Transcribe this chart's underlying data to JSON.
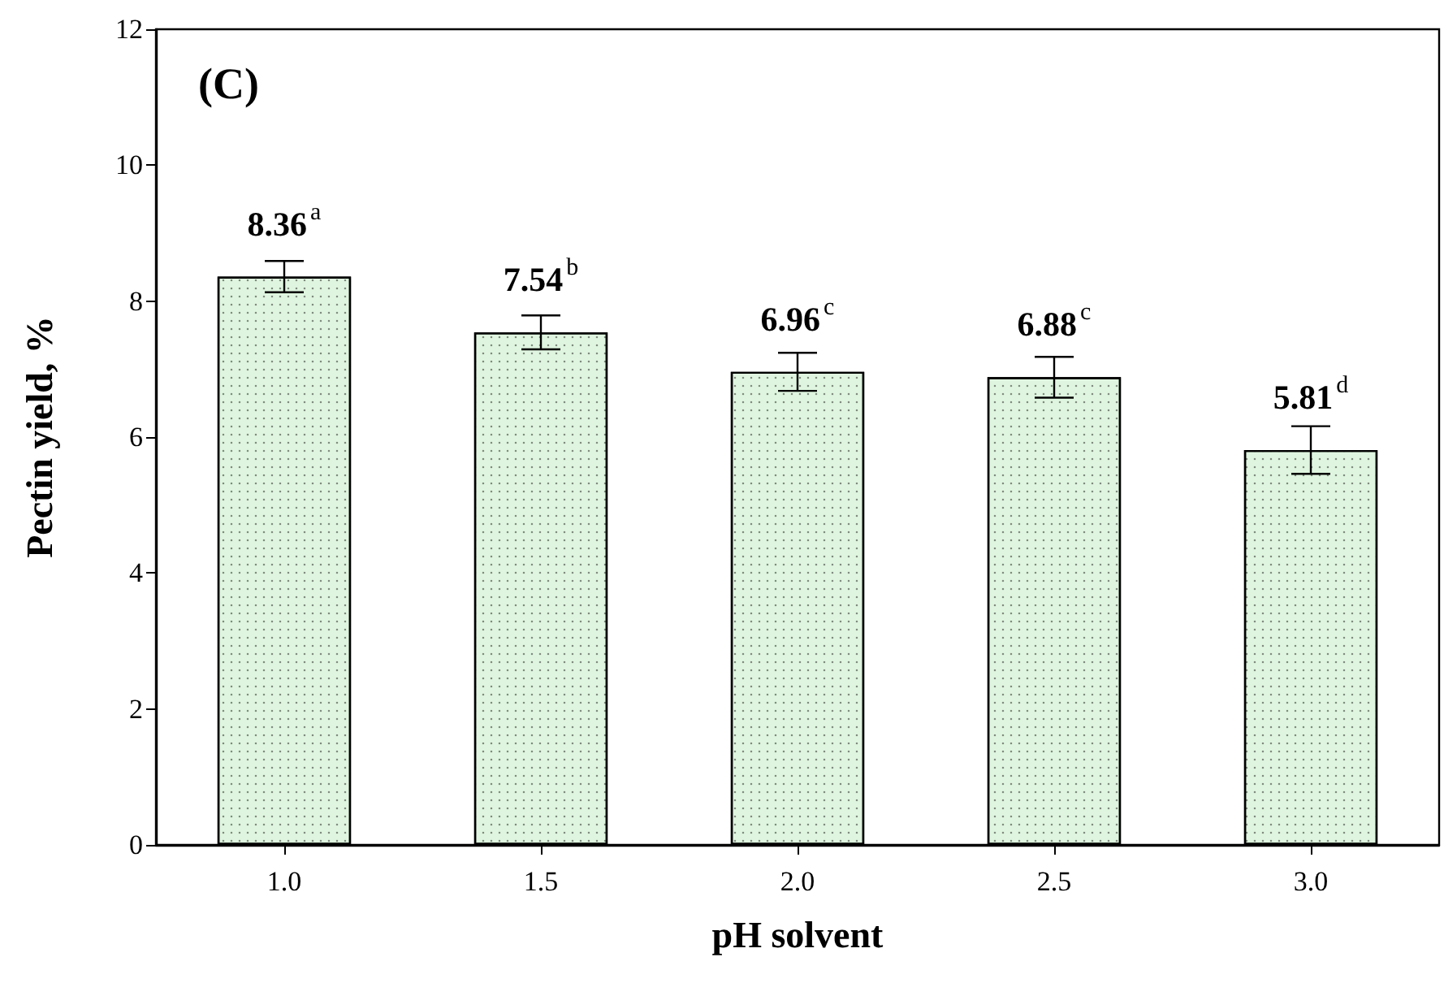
{
  "chart_data": {
    "type": "bar",
    "xlabel": "pH solvent",
    "ylabel": "Pectin yield, %",
    "annotations": [
      "(C)"
    ],
    "categories": [
      "1.0",
      "1.5",
      "2.0",
      "2.5",
      "3.0"
    ],
    "values": [
      8.36,
      7.54,
      6.96,
      6.88,
      5.81
    ],
    "errors": [
      0.23,
      0.25,
      0.28,
      0.3,
      0.35
    ],
    "value_labels": [
      "8.36$^{a}$",
      "7.54$^{b}$",
      "6.96$^{c}$",
      "6.88$^{c}$",
      "5.81$^{d}$"
    ],
    "color": "#dff5df",
    "ylim": [
      0,
      12
    ],
    "yticks": [
      0,
      2,
      4,
      6,
      8,
      10,
      12
    ],
    "grid": false
  }
}
